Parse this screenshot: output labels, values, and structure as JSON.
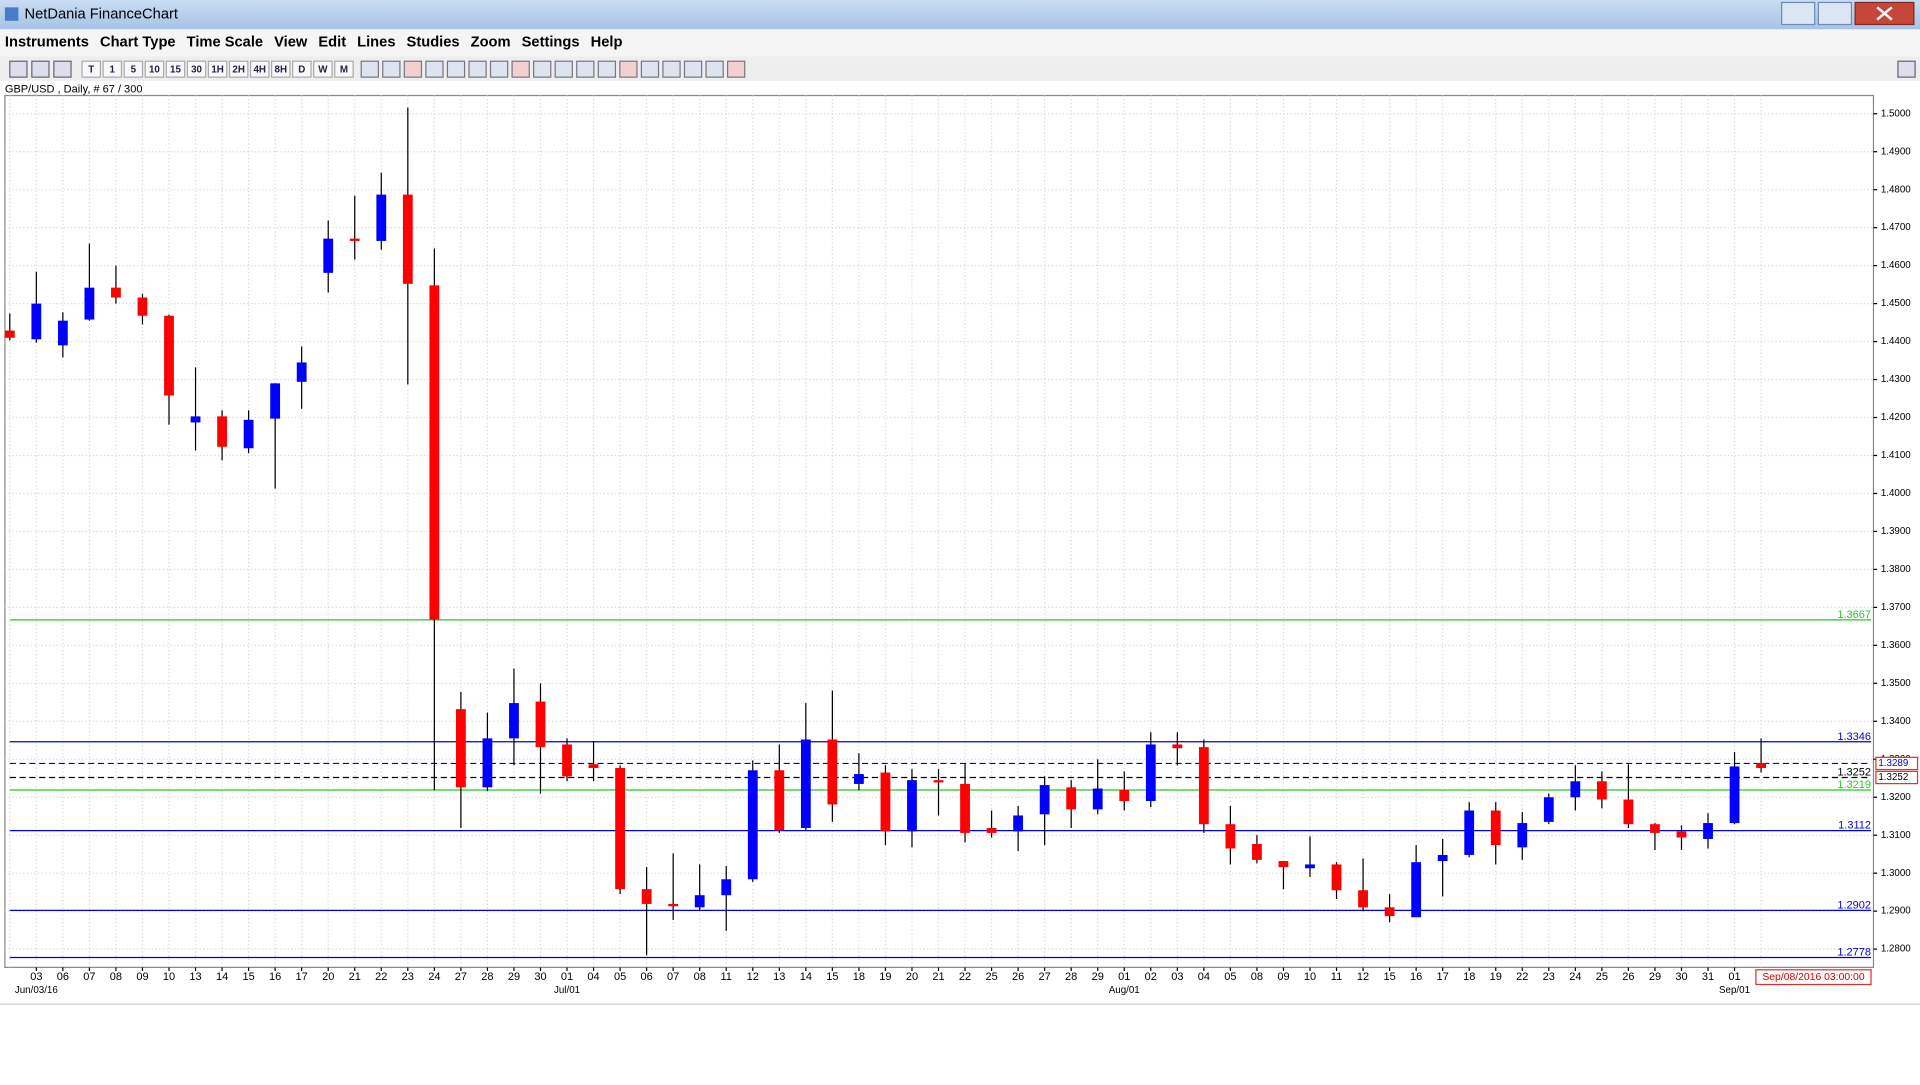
{
  "window": {
    "title": "NetDania FinanceChart"
  },
  "menu": [
    "Instruments",
    "Chart Type",
    "Time Scale",
    "View",
    "Edit",
    "Lines",
    "Studies",
    "Zoom",
    "Settings",
    "Help"
  ],
  "toolbar": [
    "T",
    "1",
    "5",
    "10",
    "15",
    "30",
    "1H",
    "2H",
    "4H",
    "8H",
    "D",
    "W",
    "M"
  ],
  "instrument_label": "GBP/USD , Daily, # 67 / 300",
  "timestamp": "Sep/08/2016 03:00:00",
  "chart_data": {
    "type": "candlestick",
    "categories": [
      null,
      "03",
      "06",
      "07",
      "08",
      "09",
      "10",
      "13",
      "14",
      "15",
      "16",
      "17",
      "20",
      "21",
      "22",
      "23",
      "24",
      "27",
      "28",
      "29",
      "30",
      "01",
      "04",
      "05",
      "06",
      "07",
      "08",
      "11",
      "12",
      "13",
      "14",
      "15",
      "18",
      "19",
      "20",
      "21",
      "22",
      "25",
      "26",
      "27",
      "28",
      "29",
      "01",
      "02",
      "03",
      "04",
      "05",
      "08",
      "09",
      "10",
      "11",
      "12",
      "15",
      "16",
      "17",
      "18",
      "19",
      "22",
      "23",
      "24",
      "25",
      "26",
      "29",
      "30",
      "31",
      "01",
      null
    ],
    "months": [
      null,
      "Jun/03/16",
      null,
      null,
      null,
      null,
      null,
      null,
      null,
      null,
      null,
      null,
      null,
      null,
      null,
      null,
      null,
      null,
      null,
      null,
      null,
      "Jul/01",
      null,
      null,
      null,
      null,
      null,
      null,
      null,
      null,
      null,
      null,
      null,
      null,
      null,
      null,
      null,
      null,
      null,
      null,
      null,
      null,
      "Aug/01",
      null,
      null,
      null,
      null,
      null,
      null,
      null,
      null,
      null,
      null,
      null,
      null,
      null,
      null,
      null,
      null,
      null,
      null,
      null,
      null,
      null,
      null,
      "Sep/01",
      null
    ],
    "open": [
      1.4429,
      1.4406,
      1.439,
      1.4458,
      1.4542,
      1.4516,
      1.4468,
      1.4187,
      1.4203,
      1.4119,
      1.4197,
      1.4294,
      1.4581,
      1.4671,
      1.4665,
      1.4787,
      1.4548,
      1.3432,
      1.3226,
      1.3355,
      1.3452,
      1.3339,
      1.3287,
      1.3277,
      1.2958,
      1.2919,
      1.291,
      1.2942,
      1.2984,
      1.3271,
      1.3119,
      1.3352,
      1.3235,
      1.3265,
      1.311,
      1.3245,
      1.3235,
      1.3119,
      1.311,
      1.3155,
      1.3226,
      1.3168,
      1.3219,
      1.319,
      1.3339,
      1.3332,
      1.3129,
      1.3077,
      1.3032,
      1.3013,
      1.3023,
      1.2955,
      1.291,
      1.2884,
      1.3032,
      1.3048,
      1.3165,
      1.3068,
      1.3135,
      1.32,
      1.3242,
      1.3194,
      1.3129,
      1.311,
      1.309,
      1.3132,
      1.329
    ],
    "high": [
      1.4474,
      1.4584,
      1.4477,
      1.4658,
      1.46,
      1.4526,
      1.4471,
      1.4332,
      1.4219,
      1.4219,
      1.429,
      1.4387,
      1.4719,
      1.4784,
      1.4845,
      1.5016,
      1.4645,
      1.3477,
      1.3423,
      1.3539,
      1.35,
      1.3355,
      1.3348,
      1.3284,
      1.3016,
      1.3052,
      1.3023,
      1.3019,
      1.3297,
      1.3339,
      1.3448,
      1.3481,
      1.3316,
      1.3284,
      1.3274,
      1.3274,
      1.329,
      1.3165,
      1.3177,
      1.3255,
      1.3245,
      1.33,
      1.3268,
      1.3371,
      1.3371,
      1.3352,
      1.3177,
      1.31,
      1.3032,
      1.3097,
      1.3029,
      1.3039,
      1.2945,
      1.3074,
      1.309,
      1.3187,
      1.3187,
      1.3161,
      1.321,
      1.3284,
      1.3268,
      1.3287,
      1.3132,
      1.3126,
      1.3158,
      1.3319,
      1.3355
    ],
    "low": [
      1.4403,
      1.4397,
      1.4358,
      1.4455,
      1.45,
      1.4445,
      1.4181,
      1.4113,
      1.4087,
      1.4106,
      1.4013,
      1.4223,
      1.4529,
      1.4616,
      1.4642,
      1.4287,
      1.3219,
      1.3119,
      1.3216,
      1.3284,
      1.321,
      1.3242,
      1.3242,
      1.2945,
      1.2784,
      1.2877,
      1.29,
      1.2848,
      1.2977,
      1.3106,
      1.3113,
      1.3135,
      1.3219,
      1.3074,
      1.3068,
      1.3152,
      1.3081,
      1.3094,
      1.3058,
      1.3074,
      1.3119,
      1.3155,
      1.3165,
      1.3174,
      1.3284,
      1.3106,
      1.3023,
      1.3026,
      1.2958,
      1.299,
      1.2932,
      1.29,
      1.2871,
      1.2884,
      1.2939,
      1.3042,
      1.3023,
      1.3035,
      1.3129,
      1.3165,
      1.3171,
      1.3119,
      1.3061,
      1.3061,
      1.3065,
      1.3129,
      1.3265
    ],
    "close": [
      1.441,
      1.45,
      1.4455,
      1.4542,
      1.4516,
      1.4468,
      1.4258,
      1.4203,
      1.4123,
      1.4194,
      1.429,
      1.4345,
      1.4671,
      1.4665,
      1.4787,
      1.4552,
      1.3668,
      1.3226,
      1.3355,
      1.3448,
      1.3332,
      1.3255,
      1.3277,
      1.2958,
      1.2919,
      1.2913,
      1.2942,
      1.2984,
      1.3271,
      1.3113,
      1.3352,
      1.3181,
      1.3261,
      1.311,
      1.3245,
      1.3239,
      1.3106,
      1.3106,
      1.3152,
      1.3232,
      1.3168,
      1.3223,
      1.319,
      1.3339,
      1.3329,
      1.3129,
      1.3065,
      1.3035,
      1.3016,
      1.3023,
      1.2955,
      1.291,
      1.2887,
      1.3029,
      1.3048,
      1.3165,
      1.3074,
      1.3132,
      1.32,
      1.3242,
      1.3194,
      1.3129,
      1.3106,
      1.3094,
      1.3132,
      1.3281,
      1.3277
    ],
    "up_color": "#0000ff",
    "down_color": "#ff0000",
    "ylim": [
      1.2752,
      1.5048
    ],
    "yticks": [
      {
        "value": 1.28,
        "label": "1.2800"
      },
      {
        "value": 1.29,
        "label": "1.2900"
      },
      {
        "value": 1.3,
        "label": "1.3000"
      },
      {
        "value": 1.31,
        "label": "1.3100"
      },
      {
        "value": 1.32,
        "label": "1.3200"
      },
      {
        "value": 1.33,
        "label": "1.3300"
      },
      {
        "value": 1.34,
        "label": "1.3400"
      },
      {
        "value": 1.35,
        "label": "1.3500"
      },
      {
        "value": 1.36,
        "label": "1.3600"
      },
      {
        "value": 1.37,
        "label": "1.3700"
      },
      {
        "value": 1.38,
        "label": "1.3800"
      },
      {
        "value": 1.39,
        "label": "1.3900"
      },
      {
        "value": 1.4,
        "label": "1.4000"
      },
      {
        "value": 1.41,
        "label": "1.4100"
      },
      {
        "value": 1.42,
        "label": "1.4200"
      },
      {
        "value": 1.43,
        "label": "1.4300"
      },
      {
        "value": 1.44,
        "label": "1.4400"
      },
      {
        "value": 1.45,
        "label": "1.4500"
      },
      {
        "value": 1.46,
        "label": "1.4600"
      },
      {
        "value": 1.47,
        "label": "1.4700"
      },
      {
        "value": 1.48,
        "label": "1.4800"
      },
      {
        "value": 1.49,
        "label": "1.4900"
      },
      {
        "value": 1.5,
        "label": "1.5000"
      }
    ],
    "grid": true,
    "levels": [
      {
        "value": 1.3667,
        "color": "#22cc22",
        "dashed": false,
        "show_label": true,
        "tag": false
      },
      {
        "value": 1.3346,
        "color": "#0000dd",
        "dashed": false,
        "show_label": true,
        "tag": false
      },
      {
        "value": 1.3289,
        "color": "#0000dd",
        "dashed": true,
        "show_label": false,
        "tag": true
      },
      {
        "value": 1.3252,
        "color": "#000000",
        "dashed": true,
        "show_label": true,
        "tag": true
      },
      {
        "value": 1.3219,
        "color": "#22cc22",
        "dashed": false,
        "show_label": true,
        "tag": false
      },
      {
        "value": 1.3112,
        "color": "#0000dd",
        "dashed": false,
        "show_label": true,
        "tag": false
      },
      {
        "value": 1.2902,
        "color": "#0000dd",
        "dashed": false,
        "show_label": true,
        "tag": false
      },
      {
        "value": 1.2778,
        "color": "#0000dd",
        "dashed": false,
        "show_label": true,
        "tag": false
      }
    ]
  }
}
